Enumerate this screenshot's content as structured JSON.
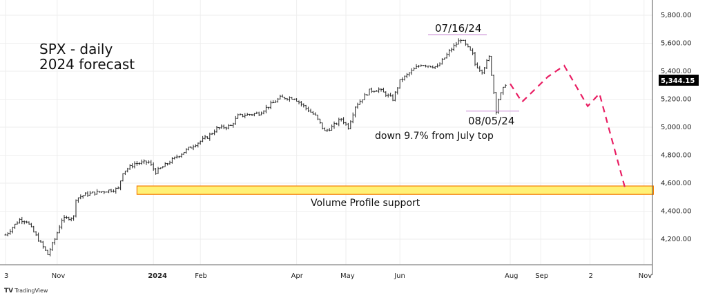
{
  "chart_data": {
    "type": "ohlc-line",
    "title": "SPX - daily",
    "subtitle": "2024 forecast",
    "ylim": [
      4000,
      5800
    ],
    "y_ticks": [
      "5,800.00",
      "5,600.00",
      "5,400.00",
      "5,200.00",
      "5,000.00",
      "4,800.00",
      "4,600.00",
      "4,400.00",
      "4,200.00"
    ],
    "y_tick_values": [
      5800,
      5600,
      5400,
      5200,
      5000,
      4800,
      4600,
      4400,
      4200
    ],
    "x_ticks": [
      {
        "label": "3",
        "day": 0
      },
      {
        "label": "Nov",
        "day": 22
      },
      {
        "label": "2024",
        "day": 63,
        "bold": true
      },
      {
        "label": "Feb",
        "day": 83
      },
      {
        "label": "Apr",
        "day": 124
      },
      {
        "label": "May",
        "day": 145
      },
      {
        "label": "Jun",
        "day": 168
      },
      {
        "label": "Aug",
        "day": 215
      },
      {
        "label": "Sep",
        "day": 228
      },
      {
        "label": "2",
        "day": 249
      },
      {
        "label": "Nov",
        "day": 272
      }
    ],
    "last_price": "5,344.15",
    "price_path": [
      [
        0,
        4230
      ],
      [
        6,
        4340
      ],
      [
        9,
        4330
      ],
      [
        12,
        4250
      ],
      [
        18,
        4090
      ],
      [
        21,
        4200
      ],
      [
        24,
        4340
      ],
      [
        29,
        4360
      ],
      [
        30,
        4490
      ],
      [
        34,
        4520
      ],
      [
        48,
        4560
      ],
      [
        50,
        4680
      ],
      [
        55,
        4740
      ],
      [
        61,
        4750
      ],
      [
        64,
        4680
      ],
      [
        73,
        4790
      ],
      [
        80,
        4870
      ],
      [
        86,
        4930
      ],
      [
        90,
        4990
      ],
      [
        96,
        5010
      ],
      [
        99,
        5080
      ],
      [
        108,
        5100
      ],
      [
        112,
        5150
      ],
      [
        117,
        5210
      ],
      [
        123,
        5210
      ],
      [
        127,
        5150
      ],
      [
        132,
        5080
      ],
      [
        136,
        4970
      ],
      [
        139,
        5000
      ],
      [
        143,
        5060
      ],
      [
        146,
        5000
      ],
      [
        149,
        5150
      ],
      [
        155,
        5260
      ],
      [
        159,
        5270
      ],
      [
        165,
        5200
      ],
      [
        168,
        5330
      ],
      [
        173,
        5400
      ],
      [
        177,
        5450
      ],
      [
        184,
        5430
      ],
      [
        190,
        5560
      ],
      [
        194,
        5630
      ],
      [
        199,
        5520
      ],
      [
        200,
        5450
      ],
      [
        203,
        5400
      ],
      [
        206,
        5500
      ],
      [
        207,
        5380
      ],
      [
        209,
        5120
      ],
      [
        210,
        5200
      ],
      [
        213,
        5310
      ],
      [
        214,
        5344
      ]
    ],
    "forecast_path": [
      [
        215,
        5310
      ],
      [
        220,
        5180
      ],
      [
        231,
        5360
      ],
      [
        238,
        5440
      ],
      [
        248,
        5150
      ],
      [
        253,
        5240
      ],
      [
        264,
        4560
      ]
    ],
    "support_zone": {
      "label": "Volume Profile support",
      "low": 4520,
      "high": 4580,
      "from_day": 56,
      "to_day": 276
    },
    "annotations": {
      "top": {
        "label": "07/16/24",
        "price": 5660
      },
      "low": {
        "label": "08/05/24",
        "price": 5120
      },
      "drop": "down 9.7% from July top"
    },
    "colors": {
      "bars": "#222222",
      "forecast": "#e91e63",
      "zone_fill": "#fff176",
      "zone_border": "#f57c00",
      "marker_line": "#ce93d8",
      "grid": "#eeeeee"
    }
  },
  "footer": {
    "brand": "TradingView",
    "brand_mark": "TV"
  }
}
